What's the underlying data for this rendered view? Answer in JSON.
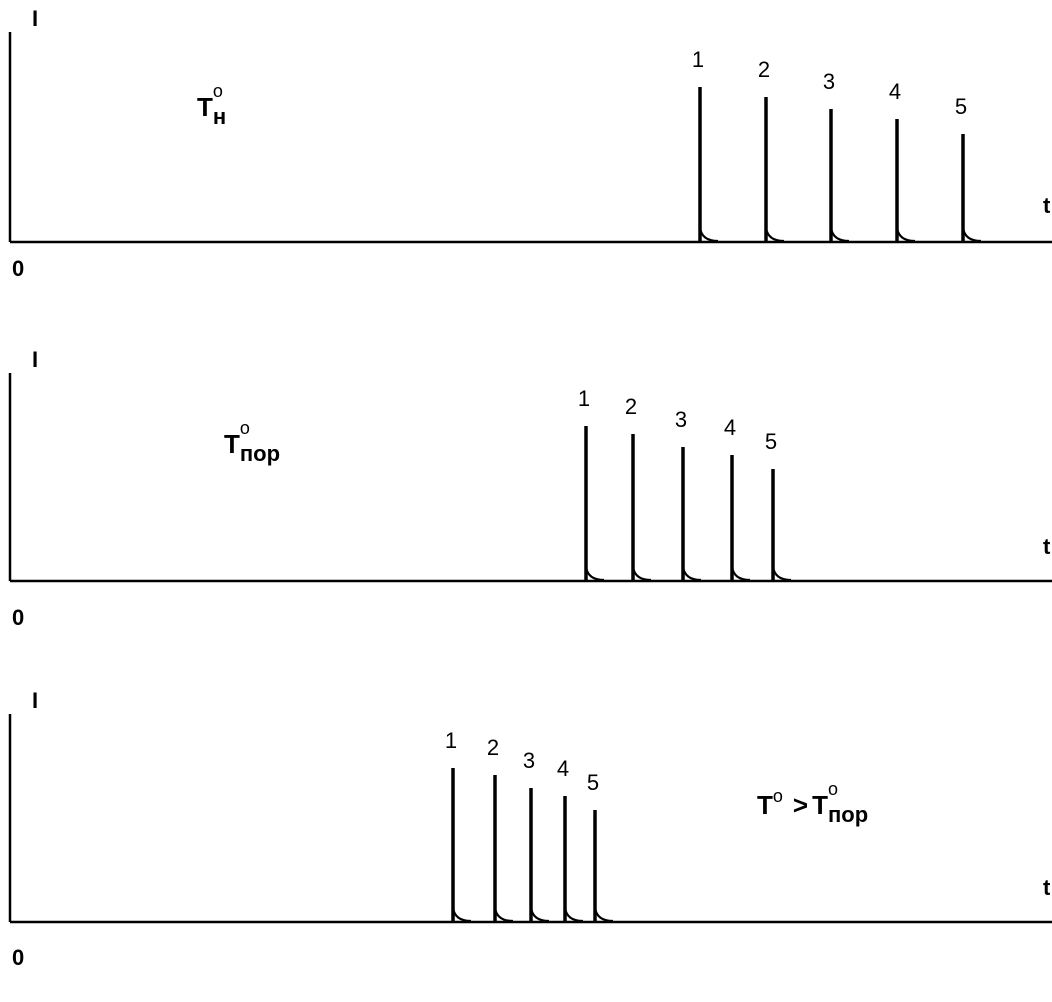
{
  "chart_data": [
    {
      "type": "line",
      "ylabel": "I",
      "xlabel": "t",
      "origin_label": "0",
      "annotation": {
        "base": "T",
        "sup": "o",
        "sub": "н"
      },
      "peaks": [
        {
          "label": "1",
          "x": 700,
          "height": 155
        },
        {
          "label": "2",
          "x": 766,
          "height": 145
        },
        {
          "label": "3",
          "x": 831,
          "height": 133
        },
        {
          "label": "4",
          "x": 897,
          "height": 123
        },
        {
          "label": "5",
          "x": 963,
          "height": 108
        }
      ],
      "xlim": [
        0,
        1052
      ],
      "ylim": [
        0,
        220
      ]
    },
    {
      "type": "line",
      "ylabel": "I",
      "xlabel": "t",
      "origin_label": "0",
      "annotation": {
        "base": "T",
        "sup": "o",
        "sub": "пор"
      },
      "peaks": [
        {
          "label": "1",
          "x": 586,
          "height": 155
        },
        {
          "label": "2",
          "x": 633,
          "height": 147
        },
        {
          "label": "3",
          "x": 683,
          "height": 134
        },
        {
          "label": "4",
          "x": 732,
          "height": 126
        },
        {
          "label": "5",
          "x": 773,
          "height": 112
        }
      ],
      "xlim": [
        0,
        1052
      ],
      "ylim": [
        0,
        220
      ]
    },
    {
      "type": "line",
      "ylabel": "I",
      "xlabel": "t",
      "origin_label": "0",
      "annotation": {
        "base": "T",
        "sup": "o",
        "relation": ">",
        "base2": "T",
        "sup2": "o",
        "sub2": "пор"
      },
      "peaks": [
        {
          "label": "1",
          "x": 453,
          "height": 154
        },
        {
          "label": "2",
          "x": 495,
          "height": 147
        },
        {
          "label": "3",
          "x": 531,
          "height": 134
        },
        {
          "label": "4",
          "x": 565,
          "height": 126
        },
        {
          "label": "5",
          "x": 595,
          "height": 112
        }
      ],
      "xlim": [
        0,
        1052
      ],
      "ylim": [
        0,
        220
      ]
    }
  ]
}
